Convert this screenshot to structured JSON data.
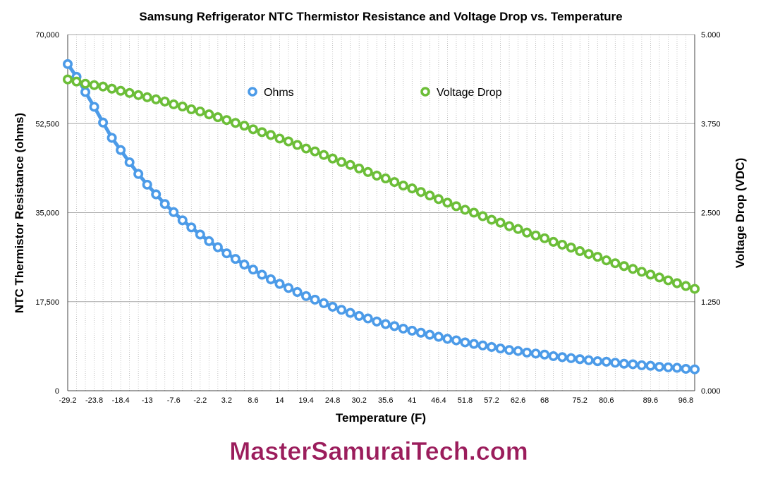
{
  "chart_data": {
    "type": "line",
    "title": "Samsung Refrigerator NTC Thermistor Resistance and Voltage Drop vs. Temperature",
    "xlabel": "Temperature (F)",
    "ylabel_left": "NTC Thermistor Resistance (ohms)",
    "ylabel_right": "Voltage Drop (VDC)",
    "x_tick_labels": [
      "-29.2",
      "-23.8",
      "-18.4",
      "-13",
      "-7.6",
      "-2.2",
      "3.2",
      "8.6",
      "14",
      "19.4",
      "24.8",
      "30.2",
      "35.6",
      "41",
      "46.4",
      "51.8",
      "57.2",
      "62.6",
      "68",
      "75.2",
      "80.6",
      "89.6",
      "96.8"
    ],
    "y_left_ticks": [
      "0",
      "17,500",
      "35,000",
      "52,500",
      "70,000"
    ],
    "y_right_ticks": [
      "0.000",
      "1.250",
      "2.500",
      "3.750",
      "5.000"
    ],
    "ylim_left": [
      0,
      70000
    ],
    "ylim_right": [
      0,
      5
    ],
    "xlim": [
      -29.2,
      98.6
    ],
    "grid": "horizontal major, vertical dotted",
    "legend": "top-center",
    "x": [
      -29.2,
      -27.4,
      -25.6,
      -23.8,
      -22,
      -20.2,
      -18.4,
      -16.6,
      -14.8,
      -13,
      -11.2,
      -9.4,
      -7.6,
      -5.8,
      -4,
      -2.2,
      -0.4,
      1.4,
      3.2,
      5,
      6.8,
      8.6,
      10.4,
      12.2,
      14,
      15.8,
      17.6,
      19.4,
      21.2,
      23,
      24.8,
      26.6,
      28.4,
      30.2,
      32,
      33.8,
      35.6,
      37.4,
      39.2,
      41,
      42.8,
      44.6,
      46.4,
      48.2,
      50,
      51.8,
      53.6,
      55.4,
      57.2,
      59,
      60.8,
      62.6,
      64.4,
      66.2,
      68,
      69.8,
      71.6,
      73.4,
      75.2,
      77,
      78.8,
      80.6,
      82.4,
      84.2,
      86,
      87.8,
      89.6,
      91.4,
      93.2,
      95,
      96.8,
      98.6
    ],
    "series": [
      {
        "name": "Ohms",
        "axis": "left",
        "color": "#4c9be8",
        "values": [
          64200,
          61700,
          58700,
          55800,
          52700,
          49700,
          47300,
          44900,
          42600,
          40500,
          38600,
          36700,
          35100,
          33500,
          32100,
          30700,
          29400,
          28200,
          27000,
          25900,
          24800,
          23800,
          22800,
          21900,
          21000,
          20200,
          19400,
          18600,
          17900,
          17200,
          16500,
          15900,
          15300,
          14700,
          14200,
          13600,
          13100,
          12700,
          12200,
          11800,
          11400,
          11000,
          10600,
          10200,
          9900,
          9500,
          9200,
          8900,
          8600,
          8300,
          8000,
          7800,
          7500,
          7300,
          7100,
          6800,
          6600,
          6400,
          6200,
          6000,
          5800,
          5700,
          5500,
          5300,
          5200,
          5000,
          4900,
          4700,
          4600,
          4500,
          4300,
          4200
        ]
      },
      {
        "name": "Voltage Drop",
        "axis": "right",
        "color": "#6cbe38",
        "values": [
          4.37,
          4.34,
          4.31,
          4.29,
          4.27,
          4.24,
          4.21,
          4.18,
          4.15,
          4.12,
          4.09,
          4.06,
          4.02,
          3.99,
          3.95,
          3.92,
          3.88,
          3.84,
          3.8,
          3.76,
          3.72,
          3.67,
          3.63,
          3.59,
          3.54,
          3.5,
          3.45,
          3.4,
          3.36,
          3.31,
          3.26,
          3.21,
          3.17,
          3.12,
          3.07,
          3.02,
          2.98,
          2.93,
          2.88,
          2.84,
          2.79,
          2.74,
          2.69,
          2.64,
          2.59,
          2.54,
          2.5,
          2.45,
          2.4,
          2.36,
          2.31,
          2.27,
          2.22,
          2.18,
          2.14,
          2.09,
          2.05,
          2.01,
          1.96,
          1.92,
          1.88,
          1.83,
          1.79,
          1.75,
          1.71,
          1.67,
          1.63,
          1.59,
          1.55,
          1.51,
          1.47,
          1.43
        ]
      }
    ]
  },
  "brand_text": "MasterSamuraiTech.com"
}
